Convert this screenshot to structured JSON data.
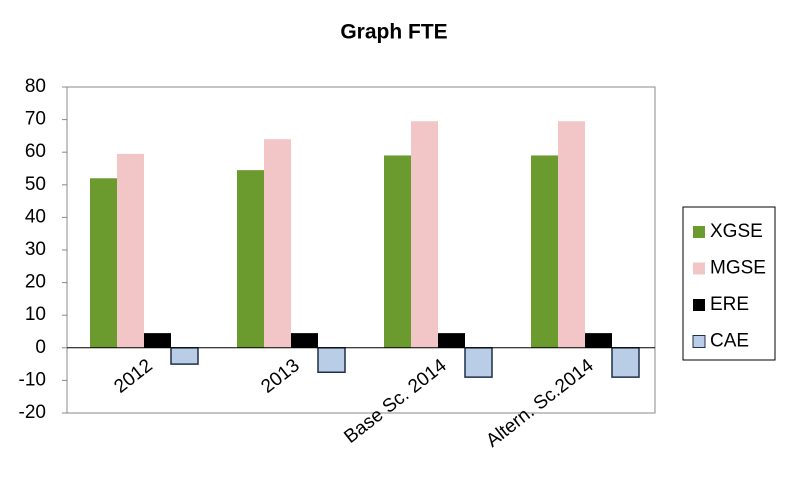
{
  "chart_data": {
    "type": "bar",
    "title": "Graph FTE",
    "categories": [
      "2012",
      "2013",
      "Base Sc. 2014",
      "Altern. Sc.2014"
    ],
    "series": [
      {
        "name": "XGSE",
        "color": "#6b9a2e",
        "values": [
          52,
          54.5,
          59,
          59
        ]
      },
      {
        "name": "MGSE",
        "color": "#f2c6c6",
        "values": [
          59.5,
          64,
          69.5,
          69.5
        ]
      },
      {
        "name": "ERE",
        "color": "#000000",
        "values": [
          4.5,
          4.5,
          4.5,
          4.5
        ]
      },
      {
        "name": "CAE",
        "color": "#b9cde6",
        "values": [
          -5,
          -7.5,
          -9,
          -9
        ]
      }
    ],
    "ylim": [
      -20,
      80
    ],
    "yticks": [
      -20,
      -10,
      0,
      10,
      20,
      30,
      40,
      50,
      60,
      70,
      80
    ],
    "legend": "right"
  }
}
